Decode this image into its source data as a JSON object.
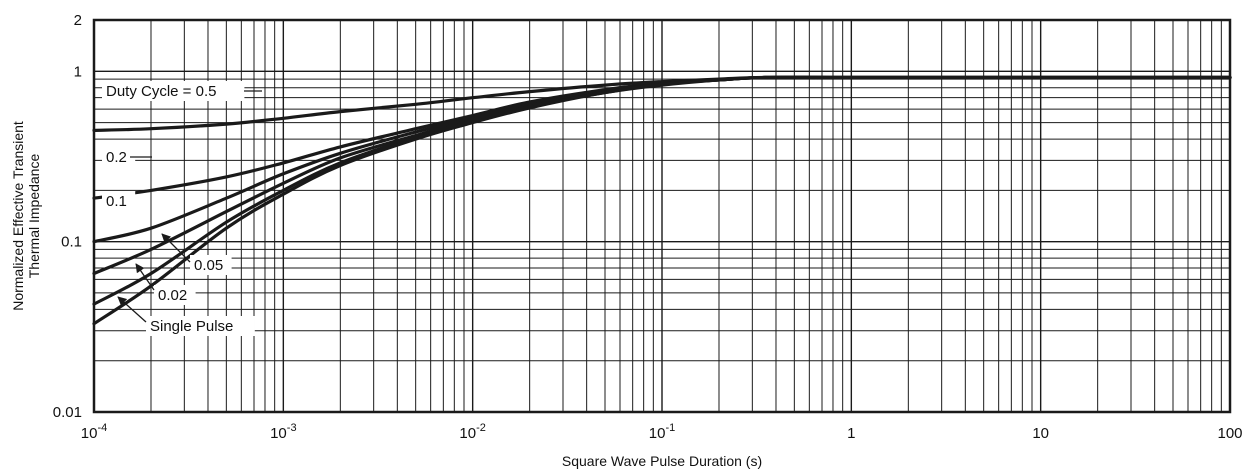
{
  "chart_data": {
    "type": "line",
    "title": "",
    "xlabel": "Square Wave Pulse Duration (s)",
    "ylabel_lines": [
      "Normalized Effective Transient",
      "Thermal Impedance"
    ],
    "xscale": "log",
    "yscale": "log",
    "xlim": [
      0.0001,
      100
    ],
    "ylim": [
      0.01,
      2
    ],
    "grid": true,
    "x_ticks": [
      {
        "value": 0.0001,
        "base": "10",
        "exp": "-4"
      },
      {
        "value": 0.001,
        "base": "10",
        "exp": "-3"
      },
      {
        "value": 0.01,
        "base": "10",
        "exp": "-2"
      },
      {
        "value": 0.1,
        "base": "10",
        "exp": "-1"
      },
      {
        "value": 1,
        "base": "1",
        "exp": ""
      },
      {
        "value": 10,
        "base": "10",
        "exp": ""
      },
      {
        "value": 100,
        "base": "100",
        "exp": ""
      }
    ],
    "y_ticks": [
      {
        "value": 0.01,
        "label": "0.01"
      },
      {
        "value": 0.1,
        "label": "0.1"
      },
      {
        "value": 1,
        "label": "1"
      },
      {
        "value": 2,
        "label": "2"
      }
    ],
    "series": [
      {
        "name": "Duty Cycle = 0.5",
        "x": [
          0.0001,
          0.0002,
          0.0005,
          0.001,
          0.002,
          0.005,
          0.01,
          0.02,
          0.05,
          0.1,
          0.2,
          0.35,
          1,
          10,
          100
        ],
        "y": [
          0.45,
          0.46,
          0.49,
          0.53,
          0.58,
          0.64,
          0.7,
          0.76,
          0.83,
          0.87,
          0.9,
          0.92,
          0.92,
          0.92,
          0.92
        ]
      },
      {
        "name": "0.2",
        "x": [
          0.0001,
          0.0002,
          0.0005,
          0.001,
          0.002,
          0.005,
          0.01,
          0.02,
          0.05,
          0.1,
          0.2,
          0.35,
          1,
          10,
          100
        ],
        "y": [
          0.18,
          0.2,
          0.24,
          0.29,
          0.36,
          0.46,
          0.55,
          0.66,
          0.78,
          0.85,
          0.89,
          0.92,
          0.92,
          0.92,
          0.92
        ]
      },
      {
        "name": "0.1",
        "x": [
          0.0001,
          0.0002,
          0.0005,
          0.001,
          0.002,
          0.005,
          0.01,
          0.02,
          0.05,
          0.1,
          0.2,
          0.35,
          1,
          10,
          100
        ],
        "y": [
          0.1,
          0.12,
          0.18,
          0.25,
          0.33,
          0.44,
          0.53,
          0.64,
          0.77,
          0.84,
          0.89,
          0.92,
          0.92,
          0.92,
          0.92
        ]
      },
      {
        "name": "0.05",
        "x": [
          0.0001,
          0.0002,
          0.0005,
          0.001,
          0.002,
          0.005,
          0.01,
          0.02,
          0.05,
          0.1,
          0.2,
          0.35,
          1,
          10,
          100
        ],
        "y": [
          0.065,
          0.09,
          0.15,
          0.22,
          0.31,
          0.42,
          0.52,
          0.63,
          0.76,
          0.84,
          0.89,
          0.92,
          0.92,
          0.92,
          0.92
        ]
      },
      {
        "name": "0.02",
        "x": [
          0.0001,
          0.0002,
          0.0005,
          0.001,
          0.002,
          0.005,
          0.01,
          0.02,
          0.05,
          0.1,
          0.2,
          0.35,
          1,
          10,
          100
        ],
        "y": [
          0.043,
          0.065,
          0.13,
          0.2,
          0.29,
          0.41,
          0.51,
          0.62,
          0.75,
          0.84,
          0.89,
          0.92,
          0.92,
          0.92,
          0.92
        ]
      },
      {
        "name": "Single Pulse",
        "x": [
          0.0001,
          0.0002,
          0.0005,
          0.001,
          0.002,
          0.005,
          0.01,
          0.02,
          0.05,
          0.1,
          0.2,
          0.35,
          1,
          10,
          100
        ],
        "y": [
          0.033,
          0.055,
          0.12,
          0.19,
          0.28,
          0.4,
          0.5,
          0.61,
          0.75,
          0.83,
          0.89,
          0.92,
          0.92,
          0.92,
          0.92
        ]
      }
    ],
    "annotations": [
      {
        "text": "Duty Cycle = 0.5",
        "series": "Duty Cycle = 0.5"
      },
      {
        "text": "0.2",
        "series": "0.2"
      },
      {
        "text": "0.1",
        "series": "0.1"
      },
      {
        "text": "0.05",
        "series": "0.05"
      },
      {
        "text": "0.02",
        "series": "0.02"
      },
      {
        "text": "Single Pulse",
        "series": "Single Pulse"
      }
    ],
    "colors": {
      "line": "#1a1a1a",
      "grid": "#1a1a1a",
      "background": "#ffffff"
    }
  }
}
